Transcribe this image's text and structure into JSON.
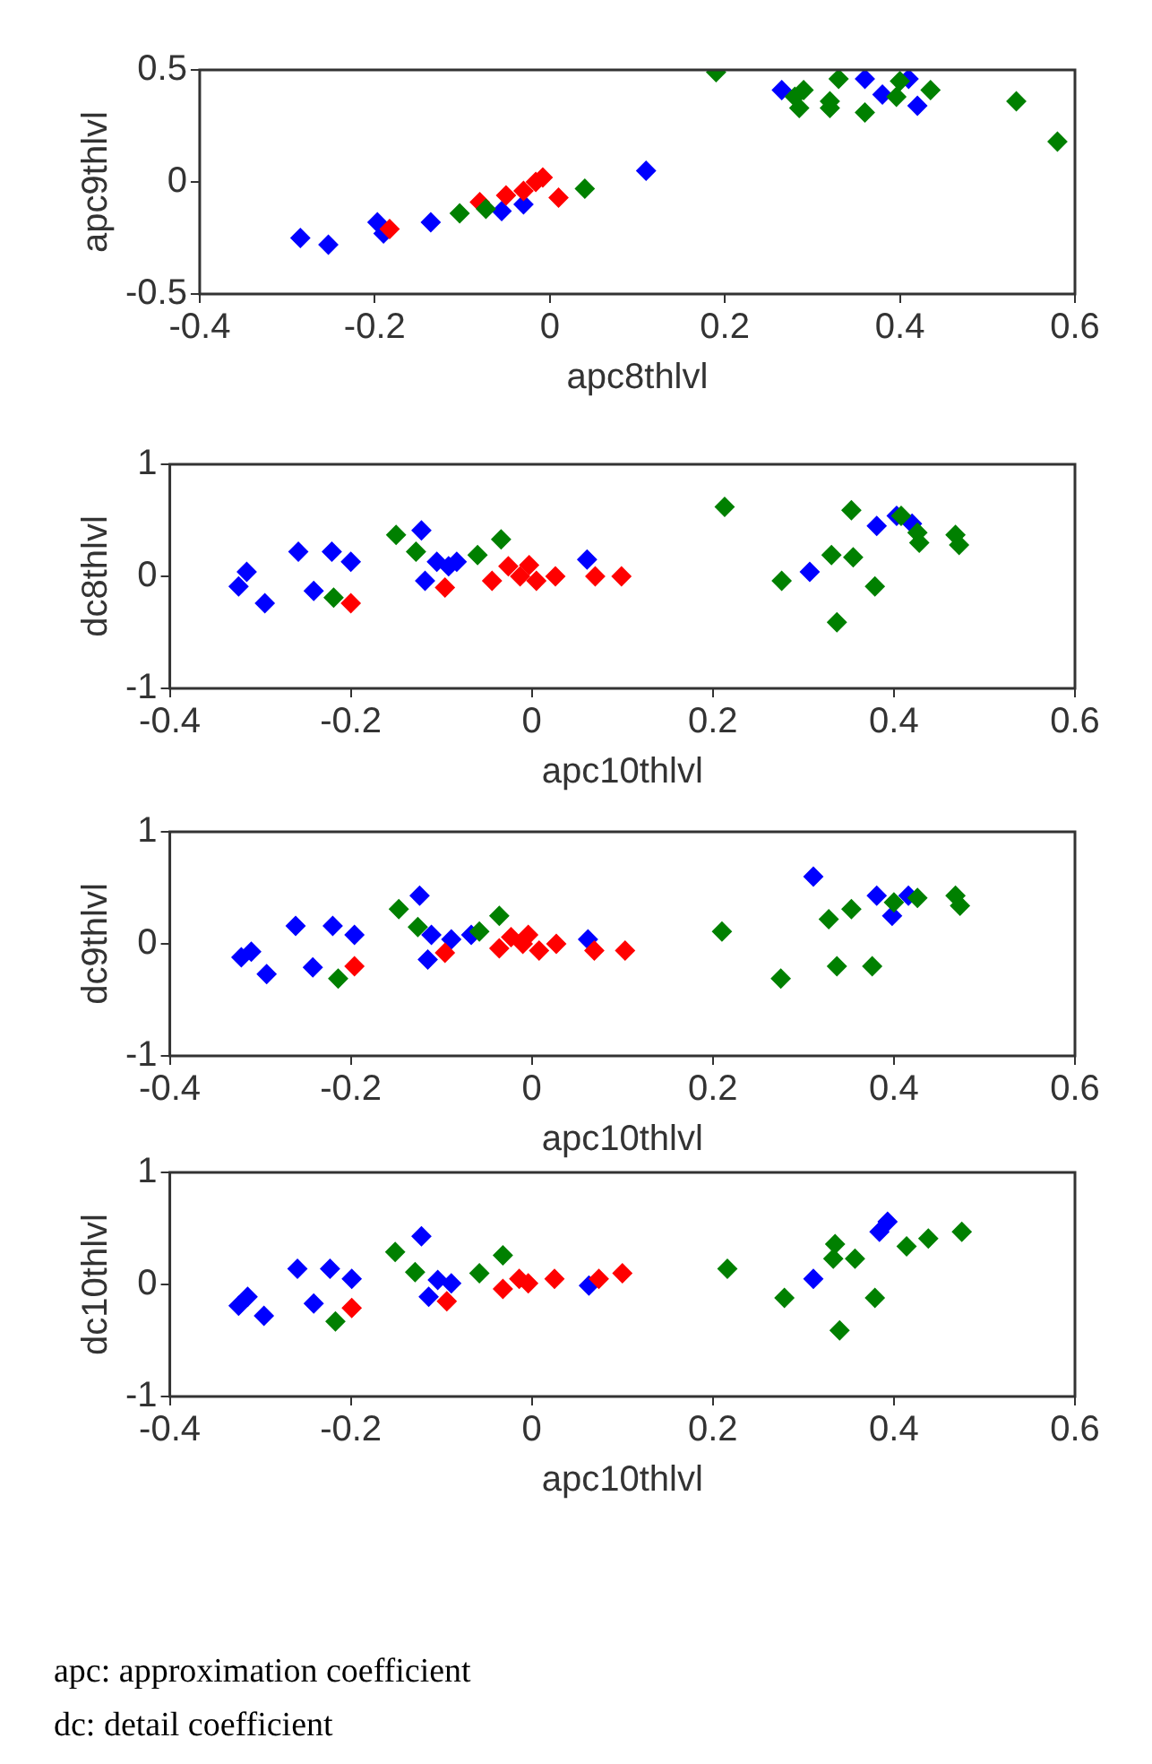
{
  "chart_data": [
    {
      "type": "scatter",
      "xlabel": "apc8thlvl",
      "ylabel": "apc9thlvl",
      "xlim": [
        -0.4,
        0.6
      ],
      "xticks": [
        -0.4,
        -0.2,
        0,
        0.2,
        0.4,
        0.6
      ],
      "ylim": [
        -0.5,
        0.5
      ],
      "yticks": [
        -0.5,
        0,
        0.5
      ],
      "grid": false,
      "legend": false,
      "marker": "diamond",
      "series": [
        {
          "color": "#0000ff",
          "x": [
            -0.285,
            -0.253,
            -0.197,
            -0.19,
            -0.136,
            -0.055,
            -0.03,
            0.11,
            0.265,
            0.36,
            0.38,
            0.41,
            0.42
          ],
          "values": [
            -0.25,
            -0.28,
            -0.18,
            -0.23,
            -0.18,
            -0.13,
            -0.1,
            0.05,
            0.41,
            0.46,
            0.39,
            0.46,
            0.34
          ]
        },
        {
          "color": "#ff0000",
          "x": [
            -0.183,
            -0.08,
            -0.05,
            -0.03,
            -0.016,
            -0.008,
            0.01
          ],
          "values": [
            -0.21,
            -0.09,
            -0.06,
            -0.04,
            0,
            0.02,
            -0.07
          ]
        },
        {
          "color": "#008000",
          "x": [
            -0.103,
            -0.073,
            0.04,
            0.19,
            0.28,
            0.285,
            0.29,
            0.32,
            0.32,
            0.33,
            0.36,
            0.396,
            0.4,
            0.435,
            0.533,
            0.58
          ],
          "values": [
            -0.14,
            -0.12,
            -0.03,
            0.49,
            0.38,
            0.33,
            0.41,
            0.36,
            0.33,
            0.46,
            0.31,
            0.38,
            0.45,
            0.41,
            0.36,
            0.18
          ]
        }
      ]
    },
    {
      "type": "scatter",
      "xlabel": "apc10thlvl",
      "ylabel": "dc8thlvl",
      "xlim": [
        -0.4,
        0.6
      ],
      "xticks": [
        -0.4,
        -0.2,
        0,
        0.2,
        0.4,
        0.6
      ],
      "ylim": [
        -1,
        1
      ],
      "yticks": [
        -1,
        0,
        1
      ],
      "grid": false,
      "legend": false,
      "marker": "diamond",
      "series": [
        {
          "color": "#0000ff",
          "x": [
            -0.324,
            -0.315,
            -0.295,
            -0.258,
            -0.241,
            -0.221,
            -0.2,
            -0.122,
            -0.118,
            -0.105,
            -0.092,
            -0.083,
            0.061,
            0.307,
            0.381,
            0.403,
            0.42
          ],
          "values": [
            -0.09,
            0.04,
            -0.24,
            0.22,
            -0.13,
            0.22,
            0.13,
            0.41,
            -0.04,
            0.13,
            0.09,
            0.13,
            0.15,
            0.04,
            0.45,
            0.54,
            0.47
          ]
        },
        {
          "color": "#ff0000",
          "x": [
            -0.2,
            -0.096,
            -0.044,
            -0.026,
            -0.013,
            -0.003,
            0.005,
            0.026,
            0.07,
            0.099
          ],
          "values": [
            -0.24,
            -0.1,
            -0.04,
            0.09,
            0,
            0.1,
            -0.04,
            0,
            0,
            0
          ]
        },
        {
          "color": "#008000",
          "x": [
            -0.219,
            -0.15,
            -0.128,
            -0.06,
            -0.034,
            0.213,
            0.276,
            0.331,
            0.337,
            0.353,
            0.355,
            0.379,
            0.408,
            0.426,
            0.428,
            0.468,
            0.472
          ],
          "values": [
            -0.19,
            0.37,
            0.22,
            0.19,
            0.33,
            0.62,
            -0.04,
            0.19,
            -0.41,
            0.59,
            0.17,
            -0.09,
            0.54,
            0.39,
            0.3,
            0.37,
            0.28
          ]
        }
      ]
    },
    {
      "type": "scatter",
      "xlabel": "apc10thlvl",
      "ylabel": "dc9thlvl",
      "xlim": [
        -0.4,
        0.6
      ],
      "xticks": [
        -0.4,
        -0.2,
        0,
        0.2,
        0.4,
        0.6
      ],
      "ylim": [
        -1,
        1
      ],
      "yticks": [
        -1,
        0,
        1
      ],
      "grid": false,
      "legend": false,
      "marker": "diamond",
      "series": [
        {
          "color": "#0000ff",
          "x": [
            -0.321,
            -0.31,
            -0.293,
            -0.261,
            -0.242,
            -0.22,
            -0.196,
            -0.124,
            -0.115,
            -0.111,
            -0.089,
            -0.067,
            0.062,
            0.311,
            0.381,
            0.398,
            0.416
          ],
          "values": [
            -0.12,
            -0.07,
            -0.27,
            0.16,
            -0.21,
            0.16,
            0.08,
            0.43,
            -0.14,
            0.08,
            0.04,
            0.08,
            0.04,
            0.6,
            0.43,
            0.25,
            0.43
          ]
        },
        {
          "color": "#ff0000",
          "x": [
            -0.196,
            -0.096,
            -0.036,
            -0.023,
            -0.01,
            -0.004,
            0.008,
            0.027,
            0.069,
            0.103
          ],
          "values": [
            -0.2,
            -0.08,
            -0.04,
            0.06,
            0,
            0.08,
            -0.06,
            0,
            -0.06,
            -0.06
          ]
        },
        {
          "color": "#008000",
          "x": [
            -0.214,
            -0.147,
            -0.126,
            -0.058,
            -0.036,
            0.21,
            0.275,
            0.328,
            0.337,
            0.353,
            0.376,
            0.4,
            0.426,
            0.468,
            0.473
          ],
          "values": [
            -0.31,
            0.31,
            0.15,
            0.11,
            0.25,
            0.11,
            -0.31,
            0.22,
            -0.2,
            0.31,
            -0.2,
            0.37,
            0.41,
            0.43,
            0.34
          ]
        }
      ]
    },
    {
      "type": "scatter",
      "xlabel": "apc10thlvl",
      "ylabel": "dc10thlvl",
      "xlim": [
        -0.4,
        0.6
      ],
      "xticks": [
        -0.4,
        -0.2,
        0,
        0.2,
        0.4,
        0.6
      ],
      "ylim": [
        -1,
        1
      ],
      "yticks": [
        -1,
        0,
        1
      ],
      "grid": false,
      "legend": false,
      "marker": "diamond",
      "annotations": [
        "apc: approximation coefficient",
        "dc: detail coefficient"
      ],
      "series": [
        {
          "color": "#0000ff",
          "x": [
            -0.324,
            -0.314,
            -0.296,
            -0.259,
            -0.241,
            -0.223,
            -0.199,
            -0.122,
            -0.114,
            -0.104,
            -0.089,
            0.063,
            0.311,
            0.384,
            0.393
          ],
          "values": [
            -0.19,
            -0.11,
            -0.28,
            0.14,
            -0.17,
            0.14,
            0.05,
            0.43,
            -0.11,
            0.04,
            0.01,
            -0.01,
            0.05,
            0.47,
            0.56
          ]
        },
        {
          "color": "#ff0000",
          "x": [
            -0.199,
            -0.094,
            -0.032,
            -0.014,
            -0.004,
            0.025,
            0.074,
            0.1
          ],
          "values": [
            -0.21,
            -0.15,
            -0.04,
            0.05,
            0.01,
            0.05,
            0.05,
            0.1
          ]
        },
        {
          "color": "#008000",
          "x": [
            -0.217,
            -0.151,
            -0.129,
            -0.058,
            -0.032,
            0.216,
            0.279,
            0.333,
            0.34,
            0.335,
            0.357,
            0.379,
            0.414,
            0.438,
            0.475
          ],
          "values": [
            -0.33,
            0.29,
            0.11,
            0.1,
            0.26,
            0.14,
            -0.12,
            0.23,
            -0.41,
            0.36,
            0.23,
            -0.12,
            0.34,
            0.41,
            0.47
          ]
        }
      ]
    }
  ]
}
